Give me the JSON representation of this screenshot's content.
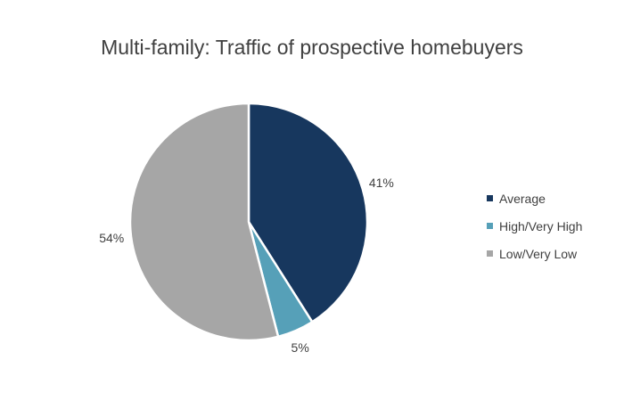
{
  "chart_data": {
    "type": "pie",
    "title": "Multi-family: Traffic of prospective homebuyers",
    "categories": [
      "Average",
      "High/Very High",
      "Low/Very Low"
    ],
    "values": [
      41,
      5,
      54
    ],
    "labels": [
      "41%",
      "5%",
      "54%"
    ],
    "colors": [
      "#17375e",
      "#56a0b8",
      "#a6a6a6"
    ],
    "legend_position": "right",
    "start_angle_deg": 0,
    "direction": "clockwise"
  },
  "legend": [
    {
      "label": "Average",
      "color": "#17375e"
    },
    {
      "label": "High/Very High",
      "color": "#56a0b8"
    },
    {
      "label": "Low/Very Low",
      "color": "#a6a6a6"
    }
  ]
}
